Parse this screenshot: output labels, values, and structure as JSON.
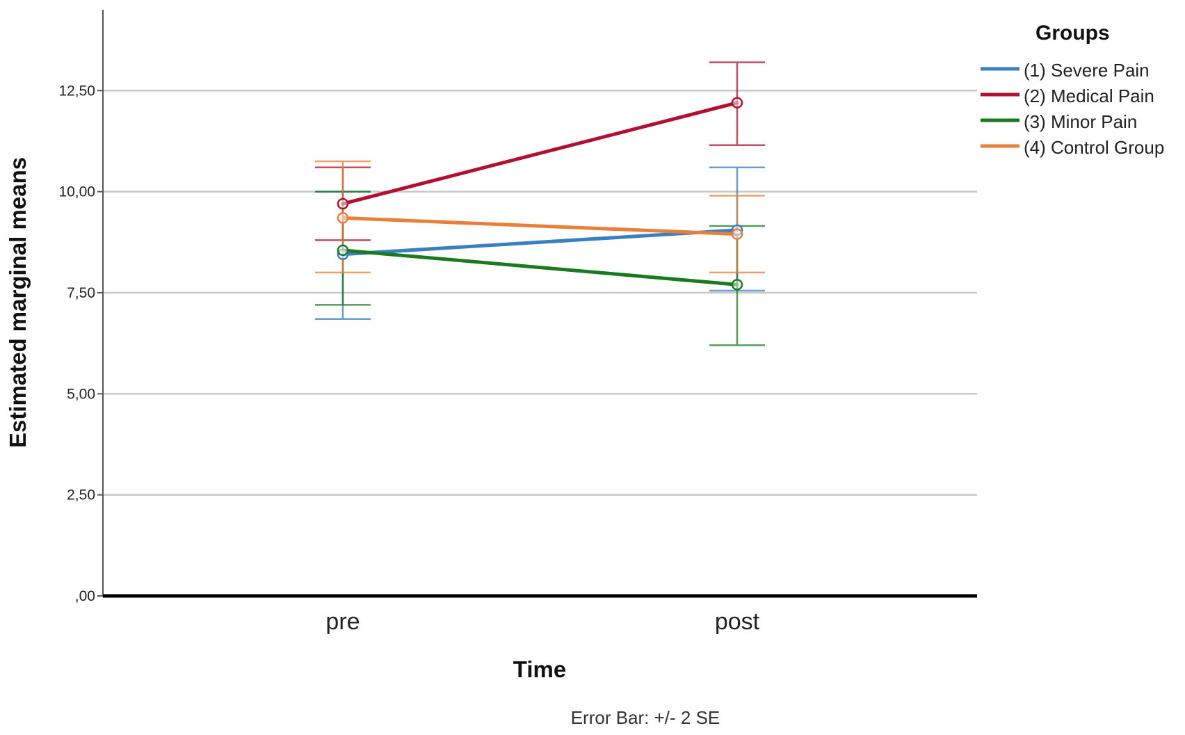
{
  "chart_data": {
    "type": "line",
    "categories": [
      "pre",
      "post"
    ],
    "series": [
      {
        "name": "(1) Severe Pain",
        "color": "#3a7fc1",
        "values": [
          8.45,
          9.05
        ],
        "error_low": [
          6.85,
          7.55
        ],
        "error_high": [
          10.0,
          10.6
        ]
      },
      {
        "name": "(2) Medical Pain",
        "color": "#b2102f",
        "values": [
          9.7,
          12.2
        ],
        "error_low": [
          8.8,
          11.15
        ],
        "error_high": [
          10.6,
          13.2
        ]
      },
      {
        "name": "(3) Minor Pain",
        "color": "#1b7a1f",
        "values": [
          8.55,
          7.7
        ],
        "error_low": [
          7.2,
          6.2
        ],
        "error_high": [
          10.0,
          9.15
        ]
      },
      {
        "name": "(4) Control Group",
        "color": "#e8803a",
        "values": [
          9.35,
          8.95
        ],
        "error_low": [
          8.0,
          8.0
        ],
        "error_high": [
          10.75,
          9.9
        ]
      }
    ],
    "y_ticks": [
      "12,50",
      "10,00",
      "7,50",
      "5,00",
      "2,50",
      ",00"
    ],
    "y_tick_values": [
      12.5,
      10.0,
      7.5,
      5.0,
      2.5,
      0.0
    ],
    "ylim": [
      0,
      14.5
    ],
    "xlabel": "Time",
    "ylabel": "Estimated marginal means",
    "legend_title": "Groups",
    "legend_position": "top-right",
    "grid": true,
    "footnote": "Error Bar: +/- 2 SE"
  }
}
